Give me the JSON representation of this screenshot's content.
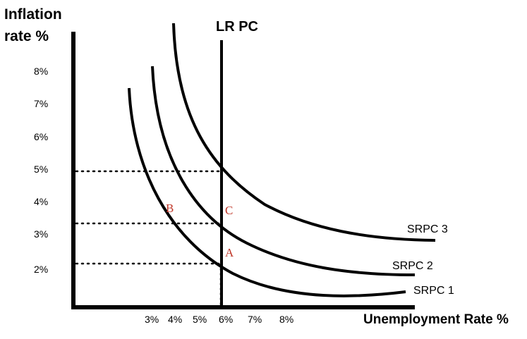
{
  "y_axis_title": [
    "Inflation",
    "rate %"
  ],
  "x_axis_title": "Unemployment Rate %",
  "y_ticks": [
    "8%",
    "7%",
    "6%",
    "5%",
    "4%",
    "3%",
    "2%"
  ],
  "x_ticks": [
    "3%",
    "4%",
    "5%",
    "6%",
    "7%",
    "8%"
  ],
  "lrpc_label": "LR PC",
  "curves": [
    "SRPC 1",
    "SRPC 2",
    "SRPC 3"
  ],
  "points": [
    "A",
    "B",
    "C"
  ],
  "colors": {
    "axis": "#000000",
    "point_label": "#c0392b"
  }
}
